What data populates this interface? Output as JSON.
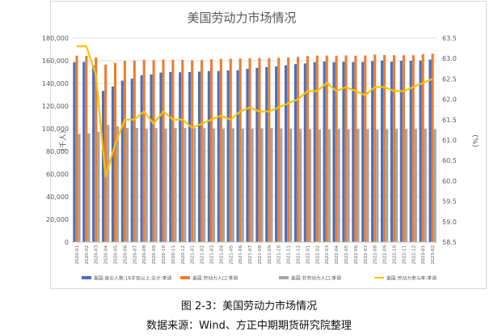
{
  "figure": {
    "caption": "图 2-3：美国劳动力市场情况",
    "source": "数据来源：Wind、方正中期期货研究院整理"
  },
  "chart_data": {
    "type": "bar",
    "title": "美国劳动力市场情况",
    "ylabel_left": "(千人)",
    "ylabel_right": "(%)",
    "ylim_left": [
      0,
      180000
    ],
    "ylim_right": [
      58.5,
      63.5
    ],
    "yticks_left": [
      "0",
      "20,000",
      "40,000",
      "60,000",
      "80,000",
      "100,000",
      "120,000",
      "140,000",
      "160,000",
      "180,000"
    ],
    "yticks_right": [
      "58.5",
      "59.0",
      "59.5",
      "60.0",
      "60.5",
      "61.0",
      "61.5",
      "62.0",
      "62.5",
      "63.0",
      "63.5"
    ],
    "grid": true,
    "legend_position": "bottom",
    "categories": [
      "2020-01",
      "2020-02",
      "2020-03",
      "2020-04",
      "2020-05",
      "2020-06",
      "2020-07",
      "2020-08",
      "2020-09",
      "2020-10",
      "2020-11",
      "2020-12",
      "2021-01",
      "2021-02",
      "2021-03",
      "2021-04",
      "2021-05",
      "2021-06",
      "2021-07",
      "2021-08",
      "2021-09",
      "2021-10",
      "2021-11",
      "2021-12",
      "2022-01",
      "2022-02",
      "2022-03",
      "2022-04",
      "2022-05",
      "2022-06",
      "2022-07",
      "2022-08",
      "2022-09",
      "2022-10",
      "2022-11",
      "2022-12",
      "2023-01",
      "2023-02"
    ],
    "series": [
      {
        "name": "美国:就业人数:16岁及以上:总计:季调",
        "type": "bar",
        "axis": "left",
        "color": "#4472c4",
        "values": [
          158700,
          158900,
          155800,
          133400,
          137300,
          142400,
          144200,
          147200,
          147800,
          149600,
          150000,
          149800,
          150000,
          150400,
          150900,
          151000,
          151500,
          151600,
          152800,
          153700,
          154400,
          155000,
          156000,
          157000,
          157600,
          158700,
          159300,
          158700,
          159100,
          158800,
          158900,
          159700,
          160100,
          159200,
          159900,
          160000,
          160100,
          161000
        ]
      },
      {
        "name": "美国:劳动力人口:季调",
        "type": "bar",
        "axis": "left",
        "color": "#ed7d31",
        "values": [
          164500,
          164300,
          162900,
          156600,
          158200,
          159900,
          160100,
          160900,
          160500,
          161100,
          160700,
          160800,
          160400,
          160500,
          161200,
          161600,
          161700,
          161900,
          162100,
          162300,
          162200,
          162500,
          162900,
          163400,
          164200,
          164600,
          164600,
          164400,
          164700,
          164500,
          164700,
          165400,
          165100,
          164900,
          164900,
          164900,
          165800,
          166300
        ]
      },
      {
        "name": "美国:非劳动力人口:季调",
        "type": "bar",
        "axis": "left",
        "color": "#a5a5a5",
        "values": [
          95500,
          95900,
          97300,
          103500,
          102100,
          100600,
          100700,
          100000,
          100600,
          100100,
          100700,
          100800,
          100500,
          100500,
          100200,
          100200,
          100300,
          100100,
          100200,
          100300,
          100500,
          100300,
          100000,
          99900,
          99600,
          99300,
          99400,
          99700,
          99500,
          99900,
          99700,
          99300,
          99600,
          99900,
          99800,
          100000,
          99900,
          99500
        ]
      },
      {
        "name": "美国:劳动力参与率:季调",
        "type": "line",
        "axis": "right",
        "color": "#ffc000",
        "values": [
          63.3,
          63.3,
          62.6,
          60.1,
          60.9,
          61.5,
          61.5,
          61.7,
          61.4,
          61.7,
          61.5,
          61.5,
          61.3,
          61.4,
          61.5,
          61.6,
          61.5,
          61.7,
          61.8,
          61.7,
          61.7,
          61.8,
          61.9,
          62.0,
          62.2,
          62.2,
          62.4,
          62.2,
          62.3,
          62.2,
          62.1,
          62.3,
          62.3,
          62.2,
          62.2,
          62.3,
          62.4,
          62.5
        ]
      }
    ]
  }
}
